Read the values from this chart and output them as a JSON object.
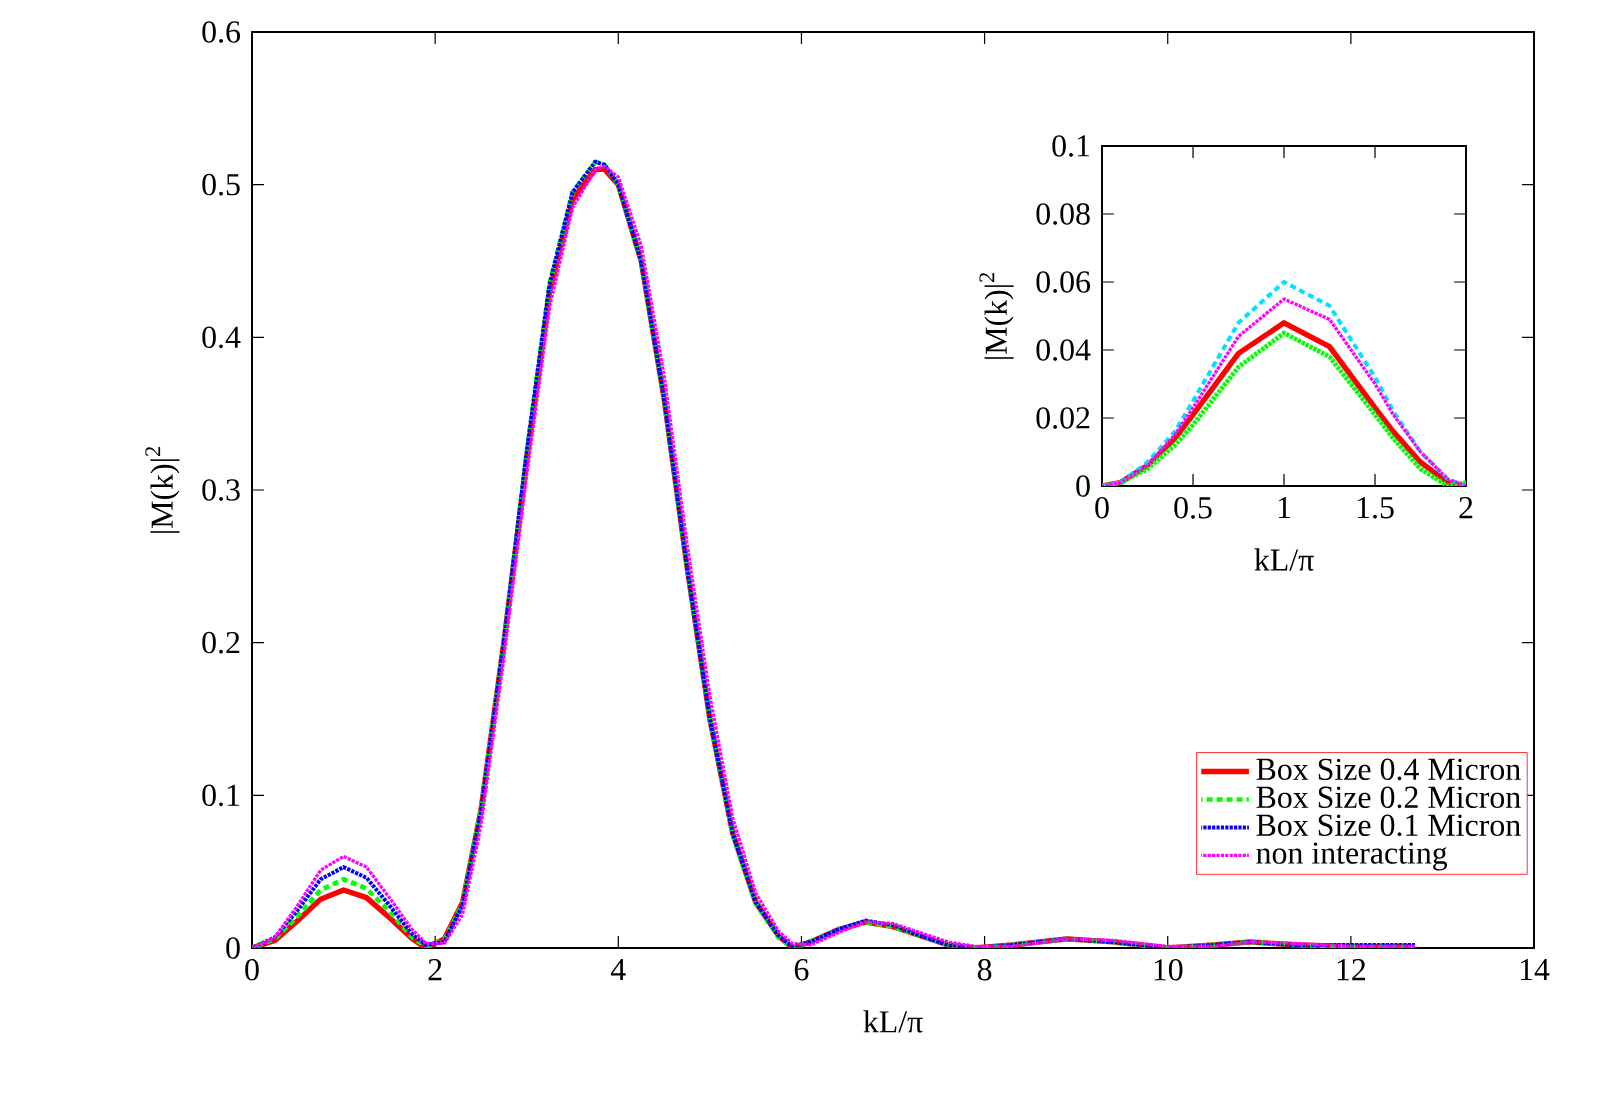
{
  "chart_data": [
    {
      "type": "line",
      "xlabel": "kL/π",
      "ylabel": "|M(k)|$^{2}$",
      "x": [
        0,
        0.25,
        0.5,
        0.75,
        1,
        1.25,
        1.5,
        1.75,
        1.9,
        2.1,
        2.3,
        2.5,
        2.75,
        3,
        3.25,
        3.5,
        3.75,
        3.85,
        4,
        4.25,
        4.5,
        4.75,
        5,
        5.25,
        5.5,
        5.75,
        5.9,
        6.1,
        6.4,
        6.7,
        7,
        7.3,
        7.6,
        7.9,
        8.3,
        8.9,
        9.4,
        10,
        10.5,
        10.9,
        11.4,
        12,
        12.7
      ],
      "series": [
        {
          "name": "Box Size 0.4 Micron",
          "color": "#ff0000",
          "line_style": "solid",
          "values": [
            0,
            0.005,
            0.018,
            0.032,
            0.038,
            0.033,
            0.02,
            0.006,
            0,
            0.006,
            0.03,
            0.09,
            0.2,
            0.32,
            0.43,
            0.49,
            0.51,
            0.51,
            0.5,
            0.45,
            0.36,
            0.25,
            0.15,
            0.075,
            0.03,
            0.008,
            0,
            0.004,
            0.012,
            0.017,
            0.014,
            0.008,
            0.002,
            0,
            0.002,
            0.006,
            0.004,
            0,
            0.002,
            0.004,
            0.002,
            0.001,
            0.001
          ]
        },
        {
          "name": "Box Size 0.2 Micron",
          "color": "#00ff00",
          "line_style": "dashed",
          "values": [
            0,
            0.006,
            0.021,
            0.038,
            0.045,
            0.039,
            0.024,
            0.007,
            0.001,
            0.005,
            0.029,
            0.09,
            0.2,
            0.325,
            0.435,
            0.495,
            0.515,
            0.513,
            0.5,
            0.45,
            0.36,
            0.25,
            0.15,
            0.074,
            0.029,
            0.007,
            0,
            0.004,
            0.012,
            0.017,
            0.014,
            0.008,
            0.002,
            0,
            0.002,
            0.006,
            0.004,
            0,
            0.002,
            0.004,
            0.002,
            0.001,
            0.001
          ]
        },
        {
          "name": "Box Size 0.1 Micron",
          "color": "#0000ff",
          "line_style": "dotted",
          "values": [
            0,
            0.007,
            0.025,
            0.045,
            0.053,
            0.046,
            0.028,
            0.009,
            0.002,
            0.004,
            0.028,
            0.089,
            0.2,
            0.325,
            0.435,
            0.495,
            0.515,
            0.513,
            0.5,
            0.45,
            0.36,
            0.25,
            0.15,
            0.075,
            0.03,
            0.008,
            0.001,
            0.004,
            0.012,
            0.018,
            0.015,
            0.008,
            0.002,
            0,
            0.002,
            0.006,
            0.004,
            0,
            0.002,
            0.004,
            0.002,
            0.002,
            0.002
          ]
        },
        {
          "name": "non interacting",
          "color": "#ff00ff",
          "line_style": "dotted",
          "values": [
            0,
            0.007,
            0.028,
            0.051,
            0.06,
            0.053,
            0.033,
            0.012,
            0.003,
            0.003,
            0.022,
            0.08,
            0.19,
            0.31,
            0.42,
            0.485,
            0.51,
            0.512,
            0.505,
            0.46,
            0.375,
            0.265,
            0.165,
            0.085,
            0.036,
            0.011,
            0.003,
            0.002,
            0.01,
            0.017,
            0.016,
            0.01,
            0.004,
            0.001,
            0.001,
            0.006,
            0.005,
            0.001,
            0.001,
            0.004,
            0.003,
            0.001,
            0.001
          ]
        }
      ],
      "xlim": [
        0,
        14
      ],
      "ylim": [
        0,
        0.6
      ],
      "xticks": [
        0,
        2,
        4,
        6,
        8,
        10,
        12,
        14
      ],
      "yticks": [
        0,
        0.1,
        0.2,
        0.3,
        0.4,
        0.5,
        0.6
      ],
      "legend": "bottom right",
      "grid": false
    },
    {
      "type": "line",
      "xlabel": "kL/π",
      "ylabel": "|M(k)|$^{2}$",
      "x": [
        0,
        0.1,
        0.25,
        0.4,
        0.5,
        0.75,
        1,
        1.25,
        1.5,
        1.6,
        1.75,
        1.9,
        2
      ],
      "series": [
        {
          "color": "#ff0000",
          "line_style": "solid",
          "values": [
            0,
            0.001,
            0.006,
            0.014,
            0.021,
            0.039,
            0.048,
            0.041,
            0.023,
            0.016,
            0.007,
            0.001,
            0
          ]
        },
        {
          "color": "#00ff00",
          "line_style": "dotted",
          "values": [
            0,
            0.001,
            0.005,
            0.012,
            0.018,
            0.035,
            0.045,
            0.038,
            0.021,
            0.014,
            0.005,
            0,
            0.001
          ]
        },
        {
          "color": "#00e0ff",
          "line_style": "dashed",
          "values": [
            0,
            0.001,
            0.007,
            0.016,
            0.025,
            0.048,
            0.06,
            0.053,
            0.032,
            0.022,
            0.01,
            0.002,
            0
          ]
        },
        {
          "color": "#ff00ff",
          "line_style": "dotted",
          "values": [
            0,
            0.001,
            0.006,
            0.015,
            0.023,
            0.044,
            0.055,
            0.049,
            0.03,
            0.021,
            0.01,
            0.002,
            0
          ]
        }
      ],
      "xlim": [
        0,
        2
      ],
      "ylim": [
        0,
        0.1
      ],
      "xticks": [
        0,
        0.5,
        1,
        1.5,
        2
      ],
      "yticks": [
        0,
        0.02,
        0.04,
        0.06,
        0.08,
        0.1
      ],
      "grid": false
    }
  ]
}
